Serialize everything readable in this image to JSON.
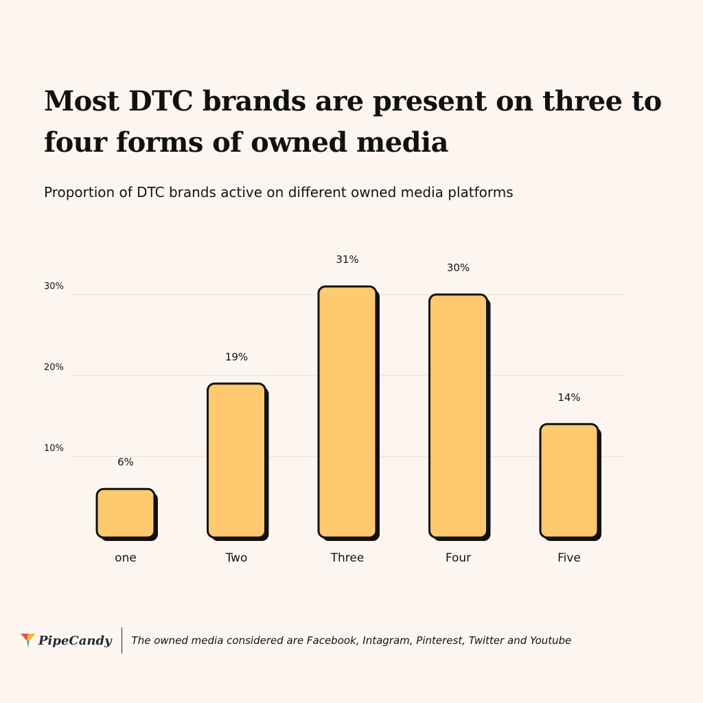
{
  "header": {
    "title": "Most DTC brands are present on three to four forms of owned media",
    "subtitle": "Proportion of DTC brands active on different owned media platforms"
  },
  "chart_data": {
    "type": "bar",
    "title": "Most DTC brands are present on three to four forms of owned media",
    "subtitle": "Proportion of DTC brands active on different owned media platforms",
    "categories": [
      "one",
      "Two",
      "Three",
      "Four",
      "Five"
    ],
    "values": [
      6,
      19,
      31,
      30,
      14
    ],
    "data_labels": [
      "6%",
      "19%",
      "31%",
      "30%",
      "14%"
    ],
    "ylim": [
      0,
      30
    ],
    "yticks": [
      10,
      20,
      30
    ],
    "ytick_labels": [
      "10%",
      "20%",
      "30%"
    ],
    "xlabel": "",
    "ylabel": "",
    "grid": true,
    "colors": {
      "bar_fill": "#ffc96f",
      "bar_stroke": "#111111",
      "gridline": "#e8dcd3"
    }
  },
  "footer": {
    "brand": "PipeCandy",
    "note": "The owned media considered are Facebook, Intagram, Pinterest, Twitter and Youtube"
  }
}
